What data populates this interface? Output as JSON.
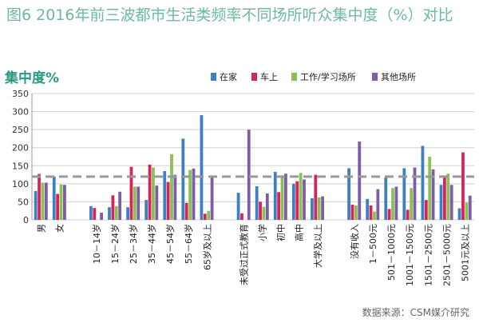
{
  "figure": {
    "title": "图6  2016年前三波都市生活类频率不同场所听众集中度（%）对比",
    "source": "数据来源：CSM媒介研究"
  },
  "chart_data": {
    "type": "bar",
    "ylabel": "集中度%",
    "ylim": [
      0,
      350
    ],
    "yticks": [
      0,
      50,
      100,
      150,
      200,
      250,
      300,
      350
    ],
    "grid": true,
    "legend_position": "top-right",
    "reference_line": 120,
    "groups": [
      {
        "categories": [
          "男",
          "女"
        ]
      },
      {
        "categories": [
          "10－14岁",
          "15－24岁",
          "25－34岁",
          "35－44岁",
          "45－54岁",
          "55－64岁",
          "65岁及以上"
        ]
      },
      {
        "categories": [
          "未受过正式教育",
          "小学",
          "初中",
          "高中",
          "大学及以上"
        ]
      },
      {
        "categories": [
          "没有收入",
          "1－500元",
          "501－1000元",
          "1001－1500元",
          "1501－2500元",
          "2501－5000元",
          "5001元及以上"
        ]
      }
    ],
    "series": [
      {
        "name": "在家",
        "color": "#3e7fc1",
        "values": [
          80,
          120,
          38,
          35,
          35,
          55,
          135,
          225,
          290,
          75,
          93,
          133,
          100,
          60,
          143,
          58,
          117,
          143,
          205,
          97,
          32
        ]
      },
      {
        "name": "车上",
        "color": "#d6245b",
        "values": [
          127,
          72,
          33,
          68,
          147,
          153,
          105,
          47,
          17,
          18,
          50,
          77,
          107,
          125,
          42,
          40,
          30,
          28,
          55,
          118,
          187
        ]
      },
      {
        "name": "工作/学习场所",
        "color": "#8bc053",
        "values": [
          103,
          98,
          0,
          38,
          92,
          145,
          182,
          138,
          25,
          0,
          36,
          122,
          130,
          62,
          40,
          23,
          88,
          88,
          175,
          128,
          48
        ]
      },
      {
        "name": "其他场所",
        "color": "#7b5da8",
        "values": [
          103,
          97,
          20,
          78,
          92,
          95,
          125,
          142,
          122,
          250,
          73,
          128,
          112,
          65,
          217,
          85,
          92,
          145,
          140,
          97,
          67
        ]
      }
    ]
  }
}
